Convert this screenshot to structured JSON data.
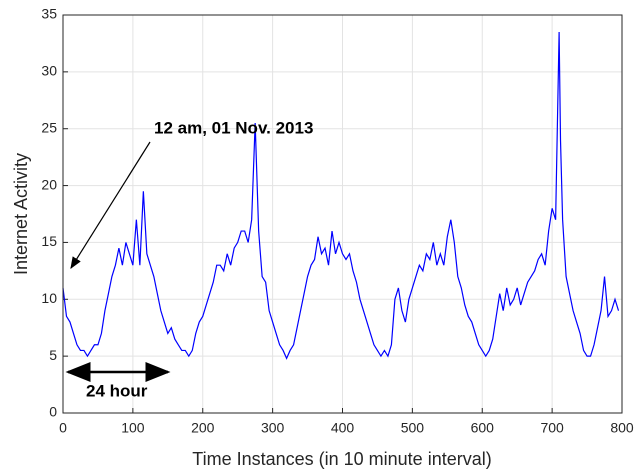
{
  "chart_data": {
    "type": "line",
    "xlabel": "Time Instances (in 10 minute interval)",
    "ylabel": "Internet Activity",
    "annotations": [
      "12 am, 01 Nov. 2013",
      "24 hour"
    ],
    "x": [
      0,
      5,
      10,
      15,
      20,
      25,
      30,
      35,
      40,
      45,
      50,
      55,
      60,
      65,
      70,
      75,
      80,
      85,
      90,
      95,
      100,
      105,
      110,
      115,
      120,
      125,
      130,
      135,
      140,
      145,
      150,
      155,
      160,
      165,
      170,
      175,
      180,
      185,
      190,
      195,
      200,
      205,
      210,
      215,
      220,
      225,
      230,
      235,
      240,
      245,
      250,
      255,
      260,
      265,
      270,
      275,
      280,
      285,
      290,
      295,
      300,
      305,
      310,
      315,
      320,
      325,
      330,
      335,
      340,
      345,
      350,
      355,
      360,
      365,
      370,
      375,
      380,
      385,
      390,
      395,
      400,
      405,
      410,
      415,
      420,
      425,
      430,
      435,
      440,
      445,
      450,
      455,
      460,
      465,
      470,
      475,
      480,
      485,
      490,
      495,
      500,
      505,
      510,
      515,
      520,
      525,
      530,
      535,
      540,
      545,
      550,
      555,
      560,
      565,
      570,
      575,
      580,
      585,
      590,
      595,
      600,
      605,
      610,
      615,
      620,
      625,
      630,
      635,
      640,
      645,
      650,
      655,
      660,
      665,
      670,
      675,
      680,
      685,
      690,
      695,
      700,
      705,
      710,
      712,
      715,
      720,
      725,
      730,
      735,
      740,
      745,
      750,
      755,
      760,
      765,
      770,
      775,
      780,
      785,
      790,
      795
    ],
    "series": [
      {
        "name": "Internet Activity",
        "color": "#0000ff",
        "values": [
          11,
          8.5,
          8,
          7,
          6,
          5.5,
          5.5,
          5,
          5.5,
          6,
          6,
          7,
          9,
          10.5,
          12,
          13,
          14.5,
          13,
          15,
          14,
          13,
          17,
          13,
          19.5,
          14,
          13,
          12,
          10.5,
          9,
          8,
          7,
          7.5,
          6.5,
          6,
          5.5,
          5.5,
          5,
          5.5,
          7,
          8,
          8.5,
          9.5,
          10.5,
          11.5,
          13,
          13,
          12.5,
          14,
          13,
          14.5,
          15,
          16,
          16,
          15,
          17,
          25.5,
          16,
          12,
          11.5,
          9,
          8,
          7,
          6,
          5.5,
          4.8,
          5.5,
          6,
          7.5,
          9,
          10.5,
          12,
          13,
          13.5,
          15.5,
          14,
          14.5,
          13,
          16,
          14,
          15,
          14,
          13.5,
          14,
          12.5,
          11.5,
          10,
          9,
          8,
          7,
          6,
          5.5,
          5,
          5.5,
          5,
          6,
          10,
          11,
          9,
          8,
          10,
          11,
          12,
          13,
          12.5,
          14,
          13.5,
          15,
          13,
          14,
          13,
          15.5,
          17,
          15,
          12,
          11,
          9.5,
          8.5,
          8,
          7,
          6,
          5.5,
          5,
          5.5,
          6.5,
          8.5,
          10.5,
          9,
          11,
          9.5,
          10,
          11,
          9.5,
          10.5,
          11.5,
          12,
          12.5,
          13.5,
          14,
          13,
          16,
          18,
          17,
          33.5,
          24,
          17,
          12,
          10.5,
          9,
          8,
          7,
          5.5,
          5,
          5,
          6,
          7.5,
          9,
          12,
          8.5,
          9,
          10,
          9
        ]
      }
    ],
    "xlim": [
      0,
      800
    ],
    "xticks": [
      0,
      100,
      200,
      300,
      400,
      500,
      600,
      700,
      800
    ],
    "ylim": [
      0,
      35
    ],
    "yticks": [
      0,
      5,
      10,
      15,
      20,
      25,
      30,
      35
    ],
    "grid": true
  }
}
